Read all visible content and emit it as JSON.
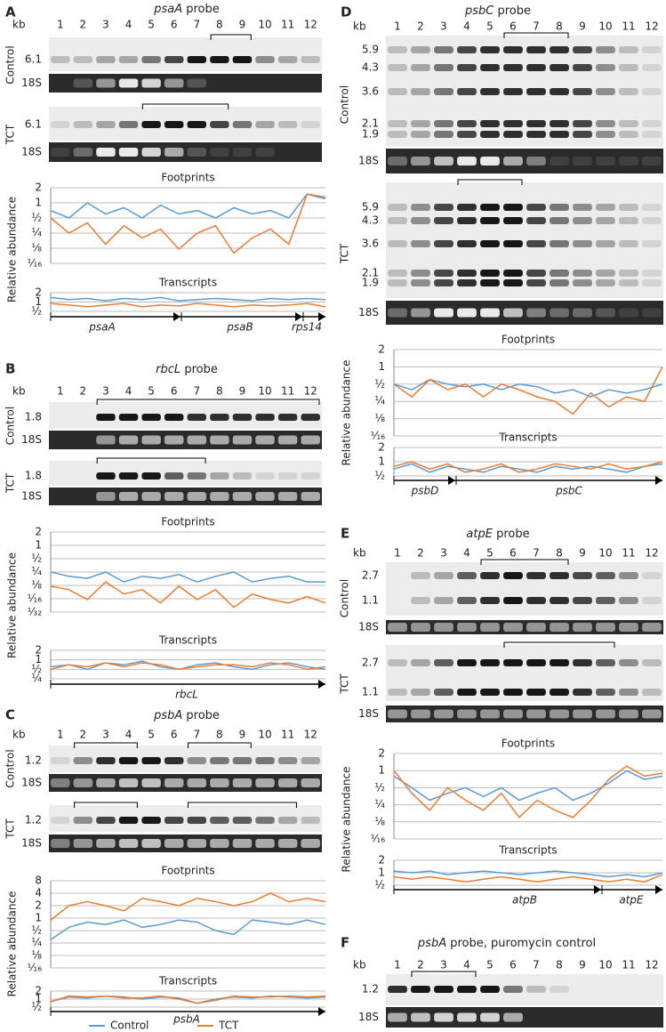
{
  "panels": [
    {
      "letter": "A",
      "probe_gene": "psaA",
      "probe_text": "probe",
      "kb": "kb",
      "lanes": [
        "1",
        "2",
        "3",
        "4",
        "5",
        "6",
        "7",
        "8",
        "9",
        "10",
        "11",
        "12"
      ],
      "blots": [
        {
          "condition": "Control",
          "sizes": [
            "6.1"
          ],
          "rrna": "18S"
        },
        {
          "condition": "TCT",
          "sizes": [
            "6.1"
          ],
          "rrna": "18S"
        }
      ]
    },
    {
      "letter": "B",
      "probe_gene": "rbcL",
      "probe_text": "probe",
      "kb": "kb",
      "lanes": [
        "1",
        "2",
        "3",
        "4",
        "5",
        "6",
        "7",
        "8",
        "9",
        "10",
        "11",
        "12"
      ],
      "blots": [
        {
          "condition": "Control",
          "sizes": [
            "1.8"
          ],
          "rrna": "18S"
        },
        {
          "condition": "TCT",
          "sizes": [
            "1.8"
          ],
          "rrna": "18S"
        }
      ]
    },
    {
      "letter": "C",
      "probe_gene": "psbA",
      "probe_text": "probe",
      "kb": "kb",
      "lanes": [
        "1",
        "2",
        "3",
        "4",
        "5",
        "6",
        "7",
        "8",
        "9",
        "10",
        "11",
        "12"
      ],
      "blots": [
        {
          "condition": "Control",
          "sizes": [
            "1.2"
          ],
          "rrna": "18S"
        },
        {
          "condition": "TCT",
          "sizes": [
            "1.2"
          ],
          "rrna": "18S"
        }
      ]
    },
    {
      "letter": "D",
      "probe_gene": "psbC",
      "probe_text": "probe",
      "kb": "kb",
      "lanes": [
        "1",
        "2",
        "3",
        "4",
        "5",
        "6",
        "7",
        "8",
        "9",
        "10",
        "11",
        "12"
      ],
      "blots": [
        {
          "condition": "Control",
          "sizes": [
            "5.9",
            "4.3",
            "3.6",
            "2.1",
            "1.9"
          ],
          "rrna": "18S"
        },
        {
          "condition": "TCT",
          "sizes": [
            "5.9",
            "4.3",
            "3.6",
            "2.1",
            "1.9"
          ],
          "rrna": "18S"
        }
      ]
    },
    {
      "letter": "E",
      "probe_gene": "atpE",
      "probe_text": "probe",
      "kb": "kb",
      "lanes": [
        "1",
        "2",
        "3",
        "4",
        "5",
        "6",
        "7",
        "8",
        "9",
        "10",
        "11",
        "12"
      ],
      "blots": [
        {
          "condition": "Control",
          "sizes": [
            "2.7",
            "1.1"
          ],
          "rrna": "18S"
        },
        {
          "condition": "TCT",
          "sizes": [
            "2.7",
            "1.1"
          ],
          "rrna": "18S"
        }
      ]
    },
    {
      "letter": "F",
      "probe_gene": "psbA",
      "probe_text": "probe, puromycin control",
      "kb": "kb",
      "lanes": [
        "1",
        "2",
        "3",
        "4",
        "5",
        "6",
        "7",
        "8",
        "9",
        "10",
        "11",
        "12"
      ],
      "blots": [
        {
          "sizes": [
            "1.2"
          ],
          "rrna": "18S"
        }
      ]
    }
  ],
  "chart_data": [
    {
      "type": "line",
      "title": "Footprints",
      "y_label": "Relative abundance",
      "log_scale": true,
      "grid": true,
      "ylim": [
        0.0625,
        2
      ],
      "yticks": [
        {
          "value": 2,
          "label": "2"
        },
        {
          "value": 1,
          "label": "1"
        },
        {
          "value": 0.5,
          "label": "½"
        },
        {
          "value": 0.25,
          "label": "¼"
        },
        {
          "value": 0.125,
          "label": "⅛"
        },
        {
          "value": 0.0625,
          "label": "¹⁄₁₆"
        }
      ],
      "series": [
        {
          "name": "Control",
          "color": "#5b9bd5",
          "values": [
            0.7,
            0.5,
            1,
            0.6,
            0.8,
            0.5,
            0.9,
            0.6,
            0.7,
            0.5,
            0.8,
            0.6,
            0.7,
            0.5,
            1.5,
            1.2
          ]
        },
        {
          "name": "TCT",
          "color": "#ed7d31",
          "values": [
            0.5,
            0.25,
            0.4,
            0.15,
            0.35,
            0.2,
            0.3,
            0.12,
            0.25,
            0.35,
            0.1,
            0.2,
            0.3,
            0.15,
            1.5,
            1.3
          ]
        }
      ]
    },
    {
      "type": "line",
      "title": "Transcripts",
      "log_scale": true,
      "grid": true,
      "ylim": [
        0.5,
        2
      ],
      "yticks": [
        {
          "value": 2,
          "label": "2"
        },
        {
          "value": 1,
          "label": "1"
        },
        {
          "value": 0.5,
          "label": "½"
        }
      ],
      "genes": [
        "psaA",
        "psaB",
        "rps14"
      ],
      "series": [
        {
          "name": "Control",
          "color": "#5b9bd5",
          "values": [
            1.4,
            1.2,
            1.3,
            1.1,
            1.3,
            1.2,
            1.4,
            1.1,
            1.2,
            1.3,
            1.2,
            1.1,
            1.3,
            1.2,
            1.3,
            1.2
          ]
        },
        {
          "name": "TCT",
          "color": "#ed7d31",
          "values": [
            0.9,
            0.8,
            0.7,
            0.8,
            0.9,
            0.7,
            0.8,
            0.75,
            0.9,
            0.8,
            0.7,
            0.8,
            0.75,
            0.8,
            0.9,
            0.7
          ]
        }
      ]
    },
    {
      "type": "line",
      "title": "Footprints",
      "y_label": "Relative abundance",
      "log_scale": true,
      "grid": true,
      "ylim": [
        0.03125,
        2
      ],
      "yticks": [
        {
          "value": 2,
          "label": "2"
        },
        {
          "value": 1,
          "label": "1"
        },
        {
          "value": 0.5,
          "label": "½"
        },
        {
          "value": 0.25,
          "label": "¼"
        },
        {
          "value": 0.125,
          "label": "⅛"
        },
        {
          "value": 0.0625,
          "label": "¹⁄₁₆"
        },
        {
          "value": 0.03125,
          "label": "¹⁄₃₂"
        }
      ],
      "series": [
        {
          "name": "Control",
          "color": "#5b9bd5",
          "values": [
            0.25,
            0.2,
            0.18,
            0.25,
            0.15,
            0.2,
            0.18,
            0.22,
            0.15,
            0.2,
            0.25,
            0.15,
            0.18,
            0.2,
            0.15,
            0.15
          ]
        },
        {
          "name": "TCT",
          "color": "#ed7d31",
          "values": [
            0.12,
            0.1,
            0.06,
            0.15,
            0.08,
            0.1,
            0.05,
            0.12,
            0.06,
            0.1,
            0.04,
            0.08,
            0.06,
            0.05,
            0.07,
            0.05
          ]
        }
      ]
    },
    {
      "type": "line",
      "title": "Transcripts",
      "log_scale": true,
      "grid": true,
      "ylim": [
        0.25,
        2
      ],
      "yticks": [
        {
          "value": 2,
          "label": "2"
        },
        {
          "value": 1,
          "label": "1"
        },
        {
          "value": 0.5,
          "label": "½"
        },
        {
          "value": 0.25,
          "label": "¼"
        }
      ],
      "genes": [
        "rbcL"
      ],
      "series": [
        {
          "name": "Control",
          "color": "#5b9bd5",
          "values": [
            0.6,
            0.7,
            0.5,
            0.8,
            0.7,
            0.9,
            0.6,
            0.5,
            0.7,
            0.8,
            0.6,
            0.5,
            0.7,
            0.8,
            0.6,
            0.5
          ]
        },
        {
          "name": "TCT",
          "color": "#ed7d31",
          "values": [
            0.5,
            0.7,
            0.6,
            0.8,
            0.6,
            0.8,
            0.7,
            0.5,
            0.6,
            0.7,
            0.7,
            0.6,
            0.8,
            0.7,
            0.5,
            0.6
          ]
        }
      ]
    },
    {
      "type": "line",
      "title": "Footprints",
      "y_label": "Relative abundance",
      "log_scale": true,
      "grid": true,
      "ylim": [
        0.0625,
        8
      ],
      "yticks": [
        {
          "value": 8,
          "label": "8"
        },
        {
          "value": 4,
          "label": "4"
        },
        {
          "value": 2,
          "label": "2"
        },
        {
          "value": 1,
          "label": "1"
        },
        {
          "value": 0.5,
          "label": "½"
        },
        {
          "value": 0.25,
          "label": "¼"
        },
        {
          "value": 0.125,
          "label": "⅛"
        },
        {
          "value": 0.0625,
          "label": "¹⁄₁₆"
        }
      ],
      "series": [
        {
          "name": "Control",
          "color": "#5b9bd5",
          "values": [
            0.3,
            0.6,
            0.8,
            0.7,
            0.9,
            0.6,
            0.7,
            0.9,
            0.8,
            0.5,
            0.4,
            0.9,
            0.8,
            0.7,
            0.9,
            0.7
          ]
        },
        {
          "name": "TCT",
          "color": "#ed7d31",
          "values": [
            0.9,
            2,
            2.5,
            2,
            1.5,
            3,
            2.5,
            2,
            3,
            2.5,
            2,
            2.5,
            4,
            2.5,
            3,
            2.5
          ]
        }
      ]
    },
    {
      "type": "line",
      "title": "Transcripts",
      "log_scale": true,
      "grid": true,
      "ylim": [
        0.5,
        2
      ],
      "yticks": [
        {
          "value": 2,
          "label": "2"
        },
        {
          "value": 1,
          "label": "1"
        },
        {
          "value": 0.5,
          "label": "½"
        }
      ],
      "genes": [
        "psbA"
      ],
      "series": [
        {
          "name": "Control",
          "color": "#5b9bd5",
          "values": [
            0.8,
            1.2,
            1.1,
            1.3,
            1.2,
            1,
            1.2,
            1.1,
            0.7,
            1,
            1.2,
            1.1,
            1.3,
            1.2,
            1.1,
            1.2
          ]
        },
        {
          "name": "TCT",
          "color": "#ed7d31",
          "values": [
            0.8,
            1.3,
            1.2,
            1.3,
            1.1,
            1.1,
            1.3,
            1,
            0.7,
            0.9,
            1.3,
            1.2,
            1.2,
            1.3,
            1.2,
            1.3
          ]
        }
      ]
    },
    {
      "type": "line",
      "title": "Footprints",
      "y_label": "Relative abundance",
      "log_scale": true,
      "grid": true,
      "ylim": [
        0.0625,
        2
      ],
      "yticks": [
        {
          "value": 2,
          "label": "2"
        },
        {
          "value": 1,
          "label": "1"
        },
        {
          "value": 0.5,
          "label": "½"
        },
        {
          "value": 0.25,
          "label": "¼"
        },
        {
          "value": 0.125,
          "label": "⅛"
        },
        {
          "value": 0.0625,
          "label": "¹⁄₁₆"
        }
      ],
      "series": [
        {
          "name": "Control",
          "color": "#5b9bd5",
          "values": [
            0.5,
            0.4,
            0.6,
            0.5,
            0.45,
            0.5,
            0.4,
            0.5,
            0.45,
            0.35,
            0.4,
            0.3,
            0.4,
            0.35,
            0.4,
            0.5
          ]
        },
        {
          "name": "TCT",
          "color": "#ed7d31",
          "values": [
            0.5,
            0.3,
            0.6,
            0.4,
            0.5,
            0.3,
            0.5,
            0.4,
            0.3,
            0.25,
            0.15,
            0.35,
            0.2,
            0.3,
            0.25,
            1
          ]
        }
      ]
    },
    {
      "type": "line",
      "title": "Transcripts",
      "log_scale": true,
      "grid": true,
      "ylim": [
        0.5,
        2
      ],
      "yticks": [
        {
          "value": 2,
          "label": "2"
        },
        {
          "value": 1,
          "label": "1"
        },
        {
          "value": 0.5,
          "label": "½"
        }
      ],
      "genes": [
        "psbD",
        "psbC"
      ],
      "series": [
        {
          "name": "Control",
          "color": "#5b9bd5",
          "values": [
            0.7,
            0.9,
            0.6,
            0.8,
            0.7,
            0.6,
            0.8,
            0.7,
            0.6,
            0.8,
            0.7,
            0.8,
            0.7,
            0.6,
            0.8,
            0.9
          ]
        },
        {
          "name": "TCT",
          "color": "#ed7d31",
          "values": [
            0.8,
            1,
            0.7,
            0.9,
            0.6,
            0.7,
            0.9,
            0.6,
            0.7,
            0.9,
            0.8,
            0.7,
            0.9,
            0.7,
            0.8,
            1
          ]
        }
      ]
    },
    {
      "type": "line",
      "title": "Footprints",
      "y_label": "Relative abundance",
      "log_scale": true,
      "grid": true,
      "ylim": [
        0.0625,
        2
      ],
      "yticks": [
        {
          "value": 2,
          "label": "2"
        },
        {
          "value": 1,
          "label": "1"
        },
        {
          "value": 0.5,
          "label": "½"
        },
        {
          "value": 0.25,
          "label": "¼"
        },
        {
          "value": 0.125,
          "label": "⅛"
        },
        {
          "value": 0.0625,
          "label": "¹⁄₁₆"
        }
      ],
      "series": [
        {
          "name": "Control",
          "color": "#5b9bd5",
          "values": [
            0.8,
            0.5,
            0.3,
            0.4,
            0.5,
            0.35,
            0.5,
            0.3,
            0.4,
            0.5,
            0.3,
            0.4,
            0.6,
            1,
            0.7,
            0.8
          ]
        },
        {
          "name": "TCT",
          "color": "#ed7d31",
          "values": [
            1,
            0.4,
            0.2,
            0.5,
            0.3,
            0.2,
            0.4,
            0.15,
            0.3,
            0.2,
            0.15,
            0.3,
            0.7,
            1.2,
            0.8,
            0.9
          ]
        }
      ]
    },
    {
      "type": "line",
      "title": "Transcripts",
      "log_scale": true,
      "grid": true,
      "ylim": [
        0.5,
        2
      ],
      "yticks": [
        {
          "value": 2,
          "label": "2"
        },
        {
          "value": 1,
          "label": "1"
        },
        {
          "value": 0.5,
          "label": "½"
        }
      ],
      "genes": [
        "atpB",
        "atpE"
      ],
      "series": [
        {
          "name": "Control",
          "color": "#5b9bd5",
          "values": [
            1.1,
            1,
            1.1,
            0.9,
            1,
            1.1,
            1,
            0.9,
            1,
            1.1,
            1,
            0.9,
            0.8,
            0.9,
            0.8,
            1
          ]
        },
        {
          "name": "TCT",
          "color": "#ed7d31",
          "values": [
            0.8,
            0.7,
            0.8,
            0.7,
            0.6,
            0.7,
            0.8,
            0.7,
            0.6,
            0.7,
            0.8,
            0.7,
            0.6,
            0.7,
            0.6,
            0.9
          ]
        }
      ]
    }
  ]
}
